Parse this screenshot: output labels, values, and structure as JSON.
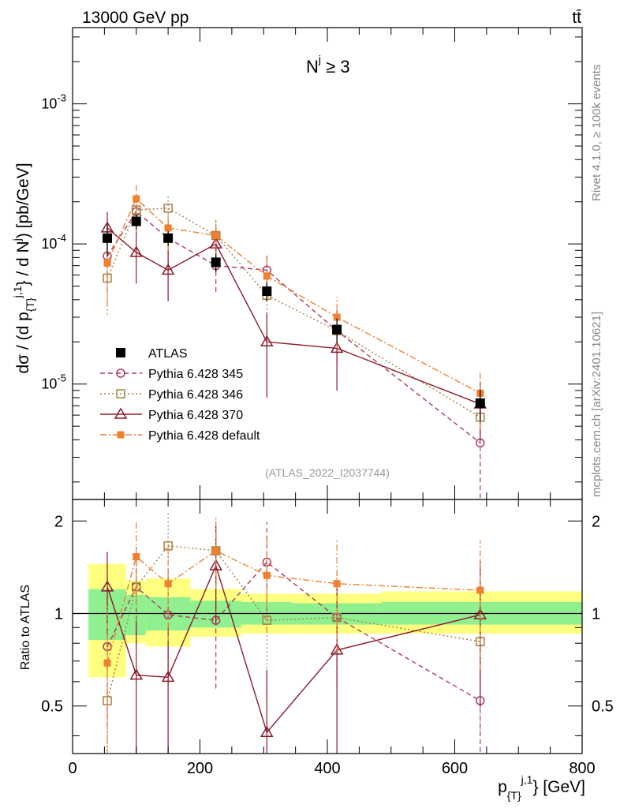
{
  "header": {
    "energy_label": "13000 GeV pp",
    "process_label": "tt̄",
    "side_label": "Rivet 4.1.0, ≥ 100k events",
    "side_label_2": "mcplots.cern.ch [arXiv:2401.10621]",
    "analysis_id": "(ATLAS_2022_I2037744)"
  },
  "chart_data": [
    {
      "type": "line",
      "title": "N^j ≥ 3",
      "title_main": "N",
      "title_sup": "j",
      "title_tail": " ≥ 3",
      "xlabel": "p_{T}^{j,1} [GeV]",
      "ylabel": "dσ / (d p_{T}^{j,1} / d N^j) [pb/GeV]",
      "yscale": "log",
      "xlim": [
        0,
        800
      ],
      "ylim": [
        1.5e-06,
        0.0035
      ],
      "x_ticks": [
        0,
        200,
        400,
        600,
        800
      ],
      "y_tick_labels": [
        "10^{-3}",
        "10^{-4}",
        "10^{-5}"
      ],
      "x": [
        54.5,
        100,
        150,
        225,
        305,
        415,
        640
      ],
      "series": [
        {
          "name": "ATLAS",
          "color": "#000000",
          "marker": "filled-square",
          "line": "none",
          "values": [
            0.00011,
            0.000145,
            0.00011,
            7.4e-05,
            4.6e-05,
            2.45e-05,
            7.3e-06
          ],
          "err_rel": [
            0.25,
            0.12,
            0.12,
            0.15,
            0.15,
            0.2,
            0.25
          ]
        },
        {
          "name": "Pythia 6.428 345",
          "color": "#b03a5c",
          "marker": "open-circle",
          "line": "dashed",
          "values": [
            8.2e-05,
            0.00017,
            0.00011,
            7e-05,
            6.5e-05,
            2.4e-05,
            3.8e-06
          ],
          "err_rel": [
            0.45,
            0.3,
            0.35,
            0.35,
            0.3,
            0.4,
            0.95
          ]
        },
        {
          "name": "Pythia 6.428 346",
          "color": "#a88040",
          "marker": "open-square",
          "line": "dotted",
          "values": [
            5.7e-05,
            0.000175,
            0.00018,
            0.000115,
            4.3e-05,
            2.4e-05,
            5.8e-06
          ],
          "err_rel": [
            0.45,
            0.3,
            0.25,
            0.3,
            0.35,
            0.4,
            0.5
          ]
        },
        {
          "name": "Pythia 6.428 370",
          "color": "#8b1a2c",
          "marker": "open-triangle",
          "line": "solid",
          "values": [
            0.00013,
            8.7e-05,
            6.5e-05,
            0.0001,
            2e-05,
            1.8e-05,
            7.2e-06
          ],
          "err_rel": [
            0.3,
            0.4,
            0.4,
            0.35,
            0.6,
            0.5,
            0.45
          ]
        },
        {
          "name": "Pythia 6.428 default",
          "color": "#f08030",
          "marker": "filled-square-small",
          "line": "dashdot",
          "values": [
            7.3e-05,
            0.00021,
            0.00013,
            0.000115,
            5.9e-05,
            3e-05,
            8.6e-06
          ],
          "err_rel": [
            0.5,
            0.25,
            0.3,
            0.3,
            0.35,
            0.4,
            0.45
          ]
        }
      ]
    },
    {
      "type": "line",
      "ylabel": "Ratio to ATLAS",
      "xlim": [
        0,
        800
      ],
      "ylim": [
        0.35,
        2.35
      ],
      "y_ticks": [
        0.5,
        1,
        2
      ],
      "y_tick_labels": [
        "0.5",
        "1",
        "2"
      ],
      "band_edges": [
        25,
        84,
        115,
        185,
        265,
        345,
        485,
        800
      ],
      "band_green": [
        [
          0.82,
          1.2
        ],
        [
          0.85,
          1.15
        ],
        [
          0.88,
          1.13
        ],
        [
          0.9,
          1.1
        ],
        [
          0.92,
          1.09
        ],
        [
          0.92,
          1.08
        ],
        [
          0.92,
          1.09
        ]
      ],
      "band_yellow": [
        [
          0.62,
          1.45
        ],
        [
          0.8,
          1.28
        ],
        [
          0.78,
          1.3
        ],
        [
          0.84,
          1.2
        ],
        [
          0.86,
          1.16
        ],
        [
          0.86,
          1.16
        ],
        [
          0.86,
          1.18
        ]
      ],
      "x": [
        54.5,
        100,
        150,
        225,
        305,
        415,
        640
      ],
      "series": [
        {
          "name": "Pythia 6.428 345",
          "color": "#b03a5c",
          "values": [
            0.78,
            1.22,
            0.99,
            0.95,
            1.47,
            0.97,
            0.52
          ],
          "err_rel": [
            0.45,
            0.35,
            0.4,
            0.4,
            0.35,
            0.4,
            0.8
          ]
        },
        {
          "name": "Pythia 6.428 346",
          "color": "#a88040",
          "values": [
            0.52,
            1.22,
            1.66,
            1.6,
            0.95,
            0.97,
            0.81
          ],
          "err_rel": [
            0.4,
            0.35,
            0.3,
            0.3,
            0.45,
            0.4,
            0.5
          ]
        },
        {
          "name": "Pythia 6.428 370",
          "color": "#8b1a2c",
          "values": [
            1.22,
            0.63,
            0.62,
            1.43,
            0.41,
            0.76,
            0.99
          ],
          "err_rel": [
            0.3,
            0.5,
            0.5,
            0.35,
            0.6,
            0.6,
            0.5
          ]
        },
        {
          "name": "Pythia 6.428 default",
          "color": "#f08030",
          "values": [
            0.69,
            1.53,
            1.25,
            1.6,
            1.33,
            1.25,
            1.19
          ],
          "err_rel": [
            0.55,
            0.3,
            0.35,
            0.25,
            0.35,
            0.4,
            0.45
          ]
        }
      ]
    }
  ]
}
